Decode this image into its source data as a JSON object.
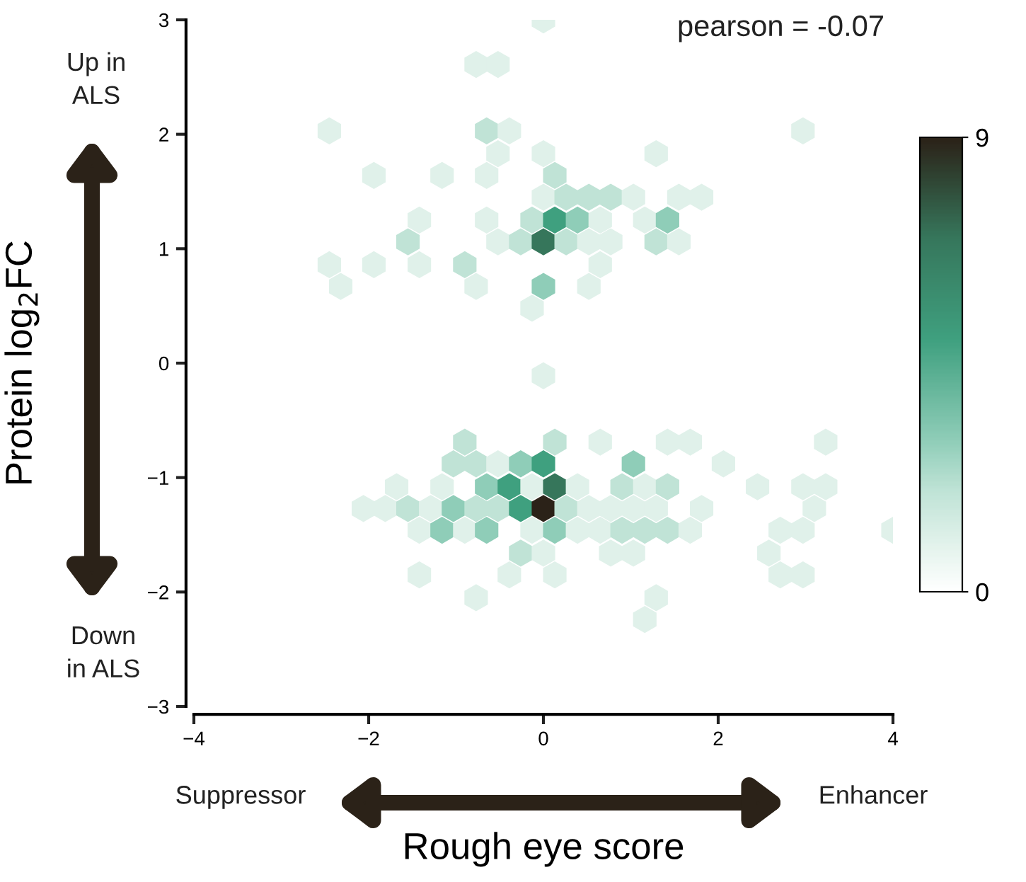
{
  "chart_data": {
    "type": "scatter",
    "xlabel": "Rough eye score",
    "ylabel": "Protein log$_{2}$FC",
    "xlim": [
      -4,
      4
    ],
    "ylim": [
      -3,
      3
    ],
    "xticks": [
      {
        "value": -4,
        "label": "−4"
      },
      {
        "value": -2,
        "label": "−2"
      },
      0,
      2,
      4
    ],
    "yticks": [
      {
        "value": -3,
        "label": "−3"
      },
      {
        "value": -2,
        "label": "−2"
      },
      {
        "value": -1,
        "label": "−1"
      },
      0,
      1,
      2,
      3
    ],
    "clim": [
      0,
      9
    ],
    "cticks": [
      0,
      9
    ],
    "grid": false,
    "annotations": [
      "pearson = -0.07",
      "Up in\nALS",
      "Down\nin ALS",
      "Suppressor",
      "Enhancer"
    ],
    "series": [
      {
        "x": [
          0,
          -0.77,
          -0.52,
          -2.45,
          -0.65,
          -0.39,
          2.97,
          -0.52,
          0,
          1.29,
          -1.94,
          -1.16,
          -0.65,
          0.13,
          0,
          0.26,
          0.52,
          0.77,
          1.03,
          1.55,
          1.81,
          -1.42,
          -0.65,
          -0.13,
          0.13,
          0.39,
          0.65,
          1.16,
          1.42,
          -1.55,
          -0.52,
          -0.26,
          0,
          0.26,
          0.52,
          0.77,
          1.29,
          1.55,
          -2.45,
          -1.94,
          -1.42,
          -0.9,
          0.65,
          -2.32,
          -0.77,
          0,
          0.52,
          -0.13,
          0,
          -0.9,
          0.13,
          0.65,
          1.42,
          1.68,
          3.23,
          -1.03,
          -0.77,
          -0.52,
          -0.26,
          0,
          1.03,
          2.06,
          -1.68,
          -1.16,
          -0.65,
          -0.39,
          -0.13,
          0.13,
          0.39,
          0.9,
          1.16,
          1.42,
          2.45,
          2.97,
          3.23,
          -2.06,
          -1.81,
          -1.55,
          -1.29,
          -1.03,
          -0.77,
          -0.52,
          -0.26,
          0,
          0.26,
          0.52,
          0.77,
          1.03,
          1.29,
          1.81,
          3.1,
          -1.42,
          -1.16,
          -0.9,
          -0.65,
          -0.13,
          0.13,
          0.39,
          0.65,
          0.9,
          1.16,
          1.42,
          1.68,
          2.71,
          2.97,
          4.0,
          -0.26,
          0,
          0.77,
          1.03,
          2.58,
          -1.42,
          -0.39,
          0.13,
          2.71,
          2.97,
          -0.77,
          1.29,
          1.16
        ],
        "values": [
          3.0,
          2.61,
          2.61,
          2.03,
          2.03,
          2.03,
          2.03,
          1.83,
          1.83,
          1.83,
          1.64,
          1.64,
          1.64,
          1.64,
          1.45,
          1.45,
          1.45,
          1.45,
          1.45,
          1.45,
          1.45,
          1.25,
          1.25,
          1.25,
          1.25,
          1.25,
          1.25,
          1.25,
          1.25,
          1.06,
          1.06,
          1.06,
          1.06,
          1.06,
          1.06,
          1.06,
          1.06,
          1.06,
          0.86,
          0.86,
          0.86,
          0.86,
          0.86,
          0.67,
          0.67,
          0.67,
          0.67,
          0.48,
          -0.11,
          -0.69,
          -0.69,
          -0.69,
          -0.69,
          -0.69,
          -0.69,
          -0.88,
          -0.88,
          -0.88,
          -0.88,
          -0.88,
          -0.88,
          -0.88,
          -1.08,
          -1.08,
          -1.08,
          -1.08,
          -1.08,
          -1.08,
          -1.08,
          -1.08,
          -1.08,
          -1.08,
          -1.08,
          -1.08,
          -1.08,
          -1.27,
          -1.27,
          -1.27,
          -1.27,
          -1.27,
          -1.27,
          -1.27,
          -1.27,
          -1.27,
          -1.27,
          -1.27,
          -1.27,
          -1.27,
          -1.27,
          -1.27,
          -1.27,
          -1.46,
          -1.46,
          -1.46,
          -1.46,
          -1.46,
          -1.46,
          -1.46,
          -1.46,
          -1.46,
          -1.46,
          -1.46,
          -1.46,
          -1.46,
          -1.46,
          -1.46,
          -1.66,
          -1.66,
          -1.66,
          -1.66,
          -1.66,
          -1.85,
          -1.85,
          -1.85,
          -1.85,
          -1.85,
          -2.05,
          -2.05,
          -2.24
        ],
        "cvalues": [
          1,
          1,
          1,
          1,
          2,
          1,
          1,
          1,
          1,
          1,
          1,
          1,
          1,
          2,
          1,
          2,
          2,
          2,
          1,
          1,
          1,
          1,
          1,
          2,
          5,
          3,
          1,
          1,
          3,
          2,
          1,
          2,
          7,
          2,
          1,
          1,
          2,
          1,
          1,
          1,
          1,
          2,
          1,
          1,
          1,
          3,
          1,
          1,
          1,
          2,
          2,
          1,
          1,
          1,
          1,
          2,
          2,
          1,
          3,
          5,
          3,
          1,
          1,
          1,
          3,
          5,
          1,
          7,
          1,
          2,
          1,
          2,
          1,
          1,
          1,
          1,
          1,
          2,
          1,
          3,
          2,
          2,
          5,
          9,
          2,
          1,
          1,
          1,
          1,
          1,
          1,
          1,
          3,
          1,
          3,
          1,
          3,
          1,
          1,
          2,
          2,
          2,
          1,
          1,
          1,
          1,
          2,
          1,
          1,
          1,
          1,
          1,
          1,
          1,
          1,
          1,
          1,
          1,
          1
        ]
      }
    ]
  }
}
